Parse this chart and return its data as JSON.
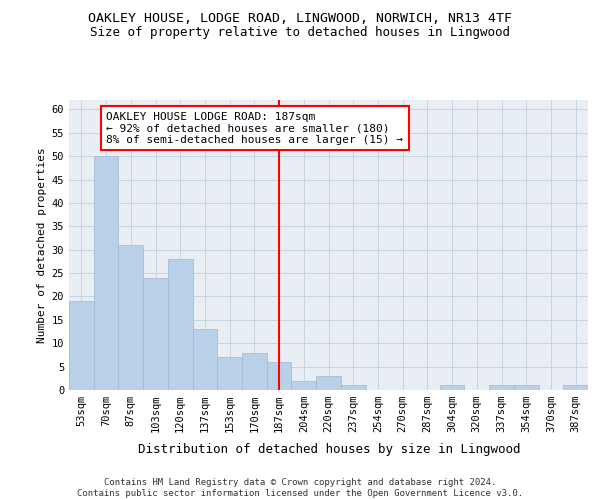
{
  "title": "OAKLEY HOUSE, LODGE ROAD, LINGWOOD, NORWICH, NR13 4TF",
  "subtitle": "Size of property relative to detached houses in Lingwood",
  "xlabel": "Distribution of detached houses by size in Lingwood",
  "ylabel": "Number of detached properties",
  "categories": [
    "53sqm",
    "70sqm",
    "87sqm",
    "103sqm",
    "120sqm",
    "137sqm",
    "153sqm",
    "170sqm",
    "187sqm",
    "204sqm",
    "220sqm",
    "237sqm",
    "254sqm",
    "270sqm",
    "287sqm",
    "304sqm",
    "320sqm",
    "337sqm",
    "354sqm",
    "370sqm",
    "387sqm"
  ],
  "values": [
    19,
    50,
    31,
    24,
    28,
    13,
    7,
    8,
    6,
    2,
    3,
    1,
    0,
    0,
    0,
    1,
    0,
    1,
    1,
    0,
    1
  ],
  "bar_color": "#b8d0e8",
  "bar_edge_color": "#a0b8d0",
  "highlight_index": 8,
  "highlight_color": "red",
  "annotation_text": "OAKLEY HOUSE LODGE ROAD: 187sqm\n← 92% of detached houses are smaller (180)\n8% of semi-detached houses are larger (15) →",
  "annotation_box_color": "white",
  "annotation_box_edge_color": "red",
  "ylim": [
    0,
    62
  ],
  "yticks": [
    0,
    5,
    10,
    15,
    20,
    25,
    30,
    35,
    40,
    45,
    50,
    55,
    60
  ],
  "footer_text": "Contains HM Land Registry data © Crown copyright and database right 2024.\nContains public sector information licensed under the Open Government Licence v3.0.",
  "background_color": "#e8eef4",
  "grid_color": "#c8d4e0",
  "title_fontsize": 9.5,
  "subtitle_fontsize": 9,
  "xlabel_fontsize": 9,
  "ylabel_fontsize": 8,
  "tick_fontsize": 7.5,
  "annotation_fontsize": 8,
  "footer_fontsize": 6.5
}
